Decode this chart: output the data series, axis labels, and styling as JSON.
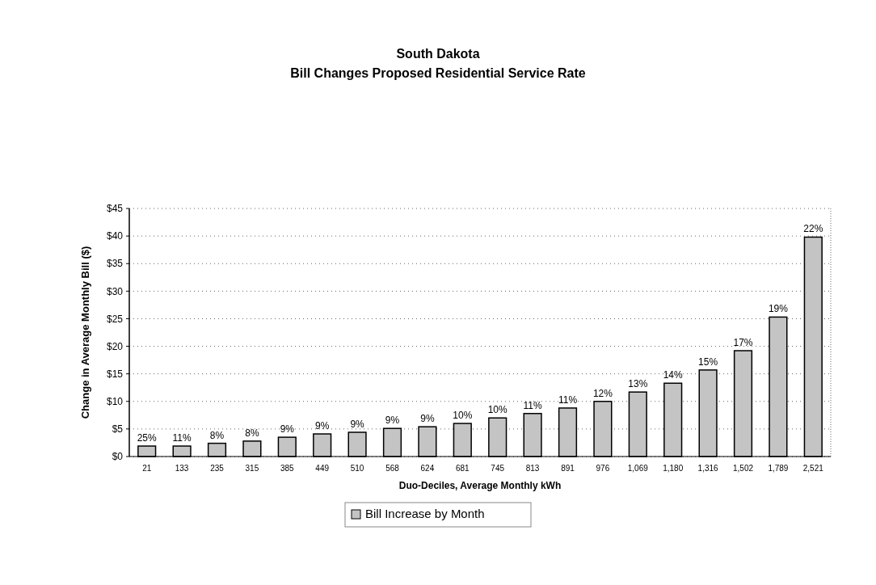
{
  "chart_data": {
    "type": "bar",
    "title": "South Dakota\nBill Changes Proposed Residential Service Rate",
    "xlabel": "Duo-Deciles, Average Monthly kWh",
    "ylabel": "Change in Average Monthly Bill  ($)",
    "categories": [
      "21",
      "133",
      "235",
      "315",
      "385",
      "449",
      "510",
      "568",
      "624",
      "681",
      "745",
      "813",
      "891",
      "976",
      "1,069",
      "1,180",
      "1,316",
      "1,502",
      "1,789",
      "2,521"
    ],
    "series": [
      {
        "name": "Bill Increase by Month",
        "color": "#c4c4c4",
        "values": [
          1.9,
          1.9,
          2.4,
          2.8,
          3.5,
          4.1,
          4.4,
          5.1,
          5.4,
          6.0,
          7.0,
          7.8,
          8.8,
          10.0,
          11.7,
          13.3,
          15.7,
          19.2,
          25.3,
          39.8
        ]
      }
    ],
    "annotations": [
      {
        "text": "25%",
        "x": "21",
        "y": 1.9
      },
      {
        "text": "11%",
        "x": "133",
        "y": 1.9
      },
      {
        "text": "8%",
        "x": "235",
        "y": 2.4
      },
      {
        "text": "8%",
        "x": "315",
        "y": 2.8
      },
      {
        "text": "9%",
        "x": "385",
        "y": 3.5
      },
      {
        "text": "9%",
        "x": "449",
        "y": 4.1
      },
      {
        "text": "9%",
        "x": "510",
        "y": 4.4
      },
      {
        "text": "9%",
        "x": "568",
        "y": 5.1
      },
      {
        "text": "9%",
        "x": "624",
        "y": 5.4
      },
      {
        "text": "10%",
        "x": "681",
        "y": 6.0
      },
      {
        "text": "10%",
        "x": "745",
        "y": 7.0
      },
      {
        "text": "11%",
        "x": "813",
        "y": 7.8
      },
      {
        "text": "11%",
        "x": "891",
        "y": 8.8
      },
      {
        "text": "12%",
        "x": "976",
        "y": 10.0
      },
      {
        "text": "13%",
        "x": "1,069",
        "y": 11.7
      },
      {
        "text": "14%",
        "x": "1,180",
        "y": 13.3
      },
      {
        "text": "15%",
        "x": "1,316",
        "y": 15.7
      },
      {
        "text": "17%",
        "x": "1,502",
        "y": 19.2
      },
      {
        "text": "19%",
        "x": "1,789",
        "y": 25.3
      },
      {
        "text": "22%",
        "x": "2,521",
        "y": 39.8
      }
    ],
    "ylim": [
      0,
      45
    ],
    "yticks": [
      {
        "value": 0,
        "label": "$0"
      },
      {
        "value": 5,
        "label": "$5"
      },
      {
        "value": 10,
        "label": "$10"
      },
      {
        "value": 15,
        "label": "$15"
      },
      {
        "value": 20,
        "label": "$20"
      },
      {
        "value": 25,
        "label": "$25"
      },
      {
        "value": 30,
        "label": "$30"
      },
      {
        "value": 35,
        "label": "$35"
      },
      {
        "value": 40,
        "label": "$40"
      },
      {
        "value": 45,
        "label": "$45"
      }
    ],
    "grid": "y",
    "legend": "bottom"
  }
}
